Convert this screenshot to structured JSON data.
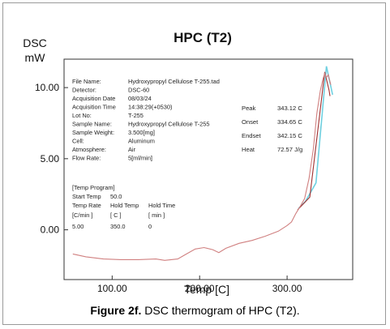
{
  "caption": {
    "label": "Figure 2f.",
    "text": "DSC thermogram of HPC (T2)."
  },
  "chart_data": {
    "type": "line",
    "title": "HPC (T2)",
    "ylabel": [
      "DSC",
      "mW"
    ],
    "xlabel": "Temp [C]",
    "xlim": [
      45,
      375
    ],
    "ylim": [
      -3.5,
      12
    ],
    "xticks": [
      100,
      200,
      300
    ],
    "xtick_labels": [
      "100.00",
      "200.00",
      "300.00"
    ],
    "yticks": [
      0,
      5,
      10
    ],
    "ytick_labels": [
      "0.00",
      "5.00",
      "10.00"
    ],
    "grid": false,
    "series": [
      {
        "color": "#d08080",
        "x": [
          55,
          70,
          90,
          110,
          130,
          150,
          160,
          175,
          185,
          195,
          205,
          215,
          222,
          230,
          245,
          260,
          275,
          290,
          300,
          305,
          310,
          315,
          320,
          325,
          330,
          334,
          338,
          341,
          343,
          345,
          347,
          350
        ],
        "y": [
          -1.7,
          -1.9,
          -2.05,
          -2.1,
          -2.1,
          -2.05,
          -2.15,
          -2.05,
          -1.7,
          -1.35,
          -1.25,
          -1.4,
          -1.6,
          -1.3,
          -0.95,
          -0.75,
          -0.45,
          -0.1,
          0.3,
          0.55,
          1.15,
          1.65,
          2.2,
          3.6,
          5.7,
          8.2,
          9.8,
          10.6,
          11.0,
          10.7,
          10.9,
          10.2
        ]
      }
    ],
    "overlays": [
      {
        "color": "#6fd0e0",
        "x": [
          313,
          321,
          333,
          345,
          352
        ],
        "y": [
          1.5,
          2.0,
          3.3,
          11.5,
          9.5
        ]
      },
      {
        "color": "#a03030",
        "x": [
          312,
          326,
          338,
          343,
          348,
          349
        ],
        "y": [
          1.4,
          2.3,
          8.5,
          11.1,
          9.8,
          9.4
        ]
      }
    ],
    "info_panel": {
      "rows": [
        {
          "label": "File Name:",
          "value": "Hydroxypropyl Cellulose T-255.tad"
        },
        {
          "label": "Detector:",
          "value": "DSC-60"
        },
        {
          "label": "Acquisition Date",
          "value": "08/03/24"
        },
        {
          "label": "Acquisition Time",
          "value": "14:38:29(+0530)"
        },
        {
          "label": "Lot No:",
          "value": "T-255"
        },
        {
          "label": "Sample Name:",
          "value": "Hydroxypropyl Cellulose T-255"
        },
        {
          "label": "Sample Weight:",
          "value": "3.500[mg]"
        },
        {
          "label": "Cell:",
          "value": "Aluminum"
        },
        {
          "label": "Atmosphere:",
          "value": "Air"
        },
        {
          "label": "Flow Rate:",
          "value": "5[ml/min]"
        }
      ]
    },
    "program_panel": {
      "title": "[Temp Program]",
      "start_label": "Start Temp",
      "start_value": "50.0",
      "headers": [
        "Temp Rate",
        "Hold Temp",
        "Hold Time"
      ],
      "units": [
        "[C/min ]",
        "[ C ]",
        "[ min ]"
      ],
      "values": [
        "5.00",
        "350.0",
        "0"
      ]
    },
    "results": [
      {
        "label": "Peak",
        "value": "343.12 C"
      },
      {
        "label": "Onset",
        "value": "334.65 C"
      },
      {
        "label": "Endset",
        "value": "342.15 C"
      },
      {
        "label": "Heat",
        "value": "72.57 J/g"
      }
    ]
  }
}
